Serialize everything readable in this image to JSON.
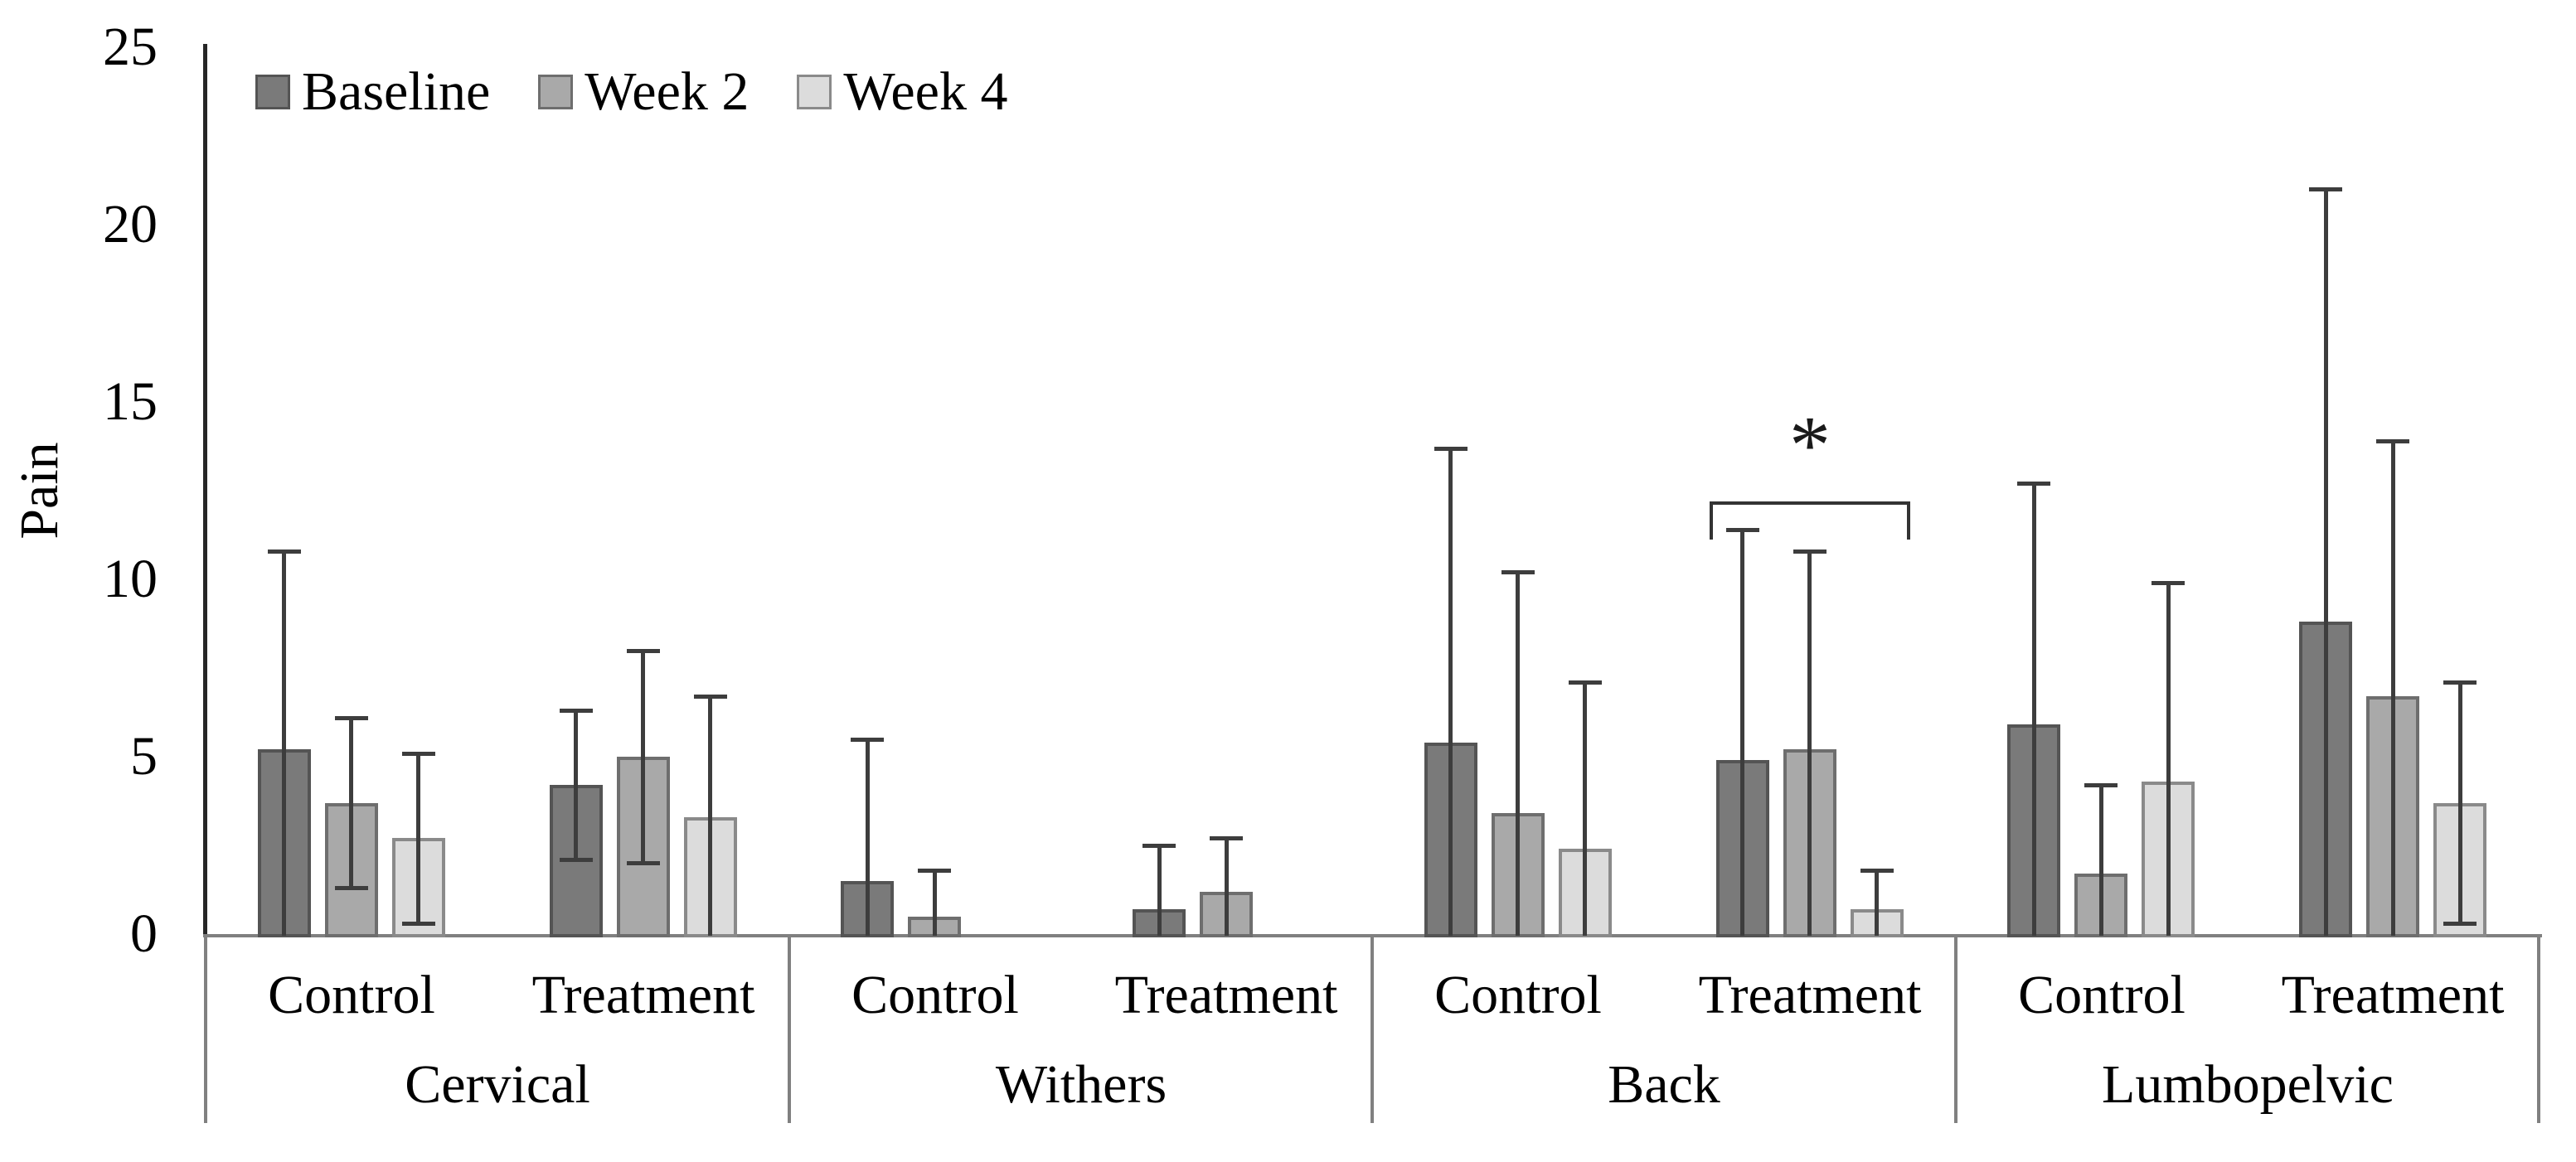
{
  "chart_data": {
    "type": "bar",
    "title": "",
    "ylabel": "Pain",
    "ylim": [
      0,
      25
    ],
    "yticks": [
      0,
      5,
      10,
      15,
      20,
      25
    ],
    "grid": false,
    "legend_position": "top-left",
    "series": [
      {
        "name": "Baseline",
        "fill": "#7a7a7a",
        "border": "#545454"
      },
      {
        "name": "Week 2",
        "fill": "#a9a9a9",
        "border": "#6e6e6e"
      },
      {
        "name": "Week 4",
        "fill": "#dcdcdc",
        "border": "#8a8a8a"
      }
    ],
    "error_bar_color": "#3d3d3d",
    "axis_line_color": "#808080",
    "y_axis_color": "#262626",
    "regions": [
      {
        "label": "Cervical",
        "subgroups": [
          {
            "label": "Control",
            "means": [
              5.2,
              3.7,
              2.7
            ],
            "sds": [
              5.6,
              2.4,
              2.4
            ]
          },
          {
            "label": "Treatment",
            "means": [
              4.2,
              5.0,
              3.3
            ],
            "sds": [
              2.1,
              3.0,
              3.4
            ]
          }
        ]
      },
      {
        "label": "Withers",
        "subgroups": [
          {
            "label": "Control",
            "means": [
              1.5,
              0.5,
              0
            ],
            "sds": [
              4.0,
              1.3,
              0
            ]
          },
          {
            "label": "Treatment",
            "means": [
              0.7,
              1.2,
              0
            ],
            "sds": [
              1.8,
              1.5,
              0
            ]
          }
        ]
      },
      {
        "label": "Back",
        "subgroups": [
          {
            "label": "Control",
            "means": [
              5.4,
              3.4,
              2.4
            ],
            "sds": [
              8.3,
              6.8,
              4.7
            ]
          },
          {
            "label": "Treatment",
            "means": [
              4.9,
              5.2,
              0.7
            ],
            "sds": [
              6.5,
              5.6,
              1.1
            ]
          }
        ]
      },
      {
        "label": "Lumbopelvic",
        "subgroups": [
          {
            "label": "Control",
            "means": [
              5.9,
              1.7,
              4.3
            ],
            "sds": [
              6.8,
              2.5,
              5.6
            ]
          },
          {
            "label": "Treatment",
            "means": [
              8.8,
              6.7,
              3.7
            ],
            "sds": [
              12.2,
              7.2,
              3.4
            ]
          }
        ]
      }
    ],
    "annotation": {
      "text": "*",
      "region": "Back",
      "subgroup": "Treatment",
      "bracket_value": 12.2
    }
  }
}
